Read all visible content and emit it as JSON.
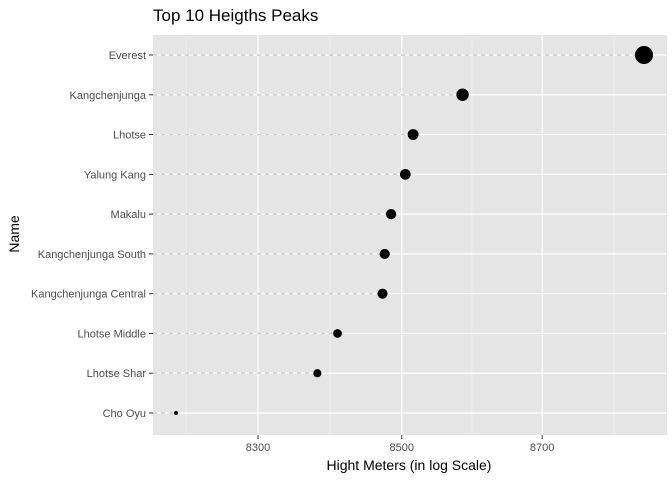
{
  "chart_data": {
    "type": "scatter",
    "title": "Top 10 Heigths Peaks",
    "xlabel": "Hight Meters (in log Scale)",
    "ylabel": "Name",
    "x_scale": "log",
    "xlim": [
      8188,
      8848
    ],
    "x_ticks": [
      8300,
      8500,
      8700
    ],
    "grid": true,
    "legend": "none",
    "point_color": "#000000",
    "panel_color": "#e5e5e5",
    "segment_color": "#cccccc",
    "categories": [
      "Everest",
      "Kangchenjunga",
      "Lhotse",
      "Yalung Kang",
      "Makalu",
      "Kangchenjunga South",
      "Kangchenjunga Central",
      "Lhotse Middle",
      "Lhotse Shar",
      "Cho Oyu"
    ],
    "values": [
      8848,
      8586,
      8516,
      8505,
      8485,
      8476,
      8473,
      8410,
      8382,
      8188
    ]
  }
}
